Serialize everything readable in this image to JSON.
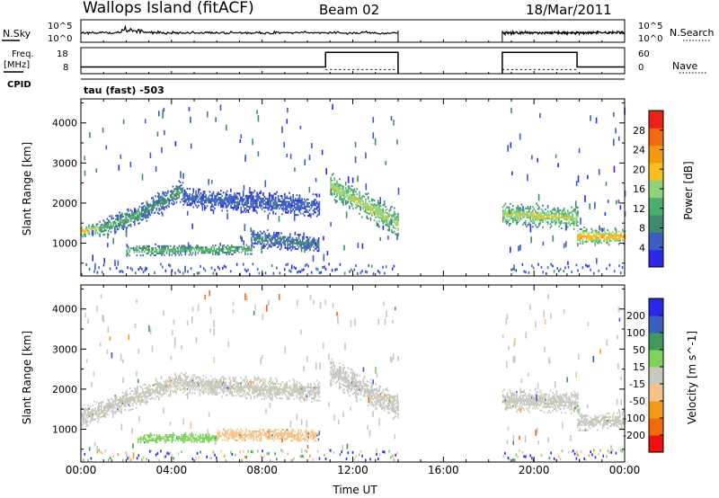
{
  "header": {
    "station": "Wallops Island (fitACF)",
    "beam": "Beam 02",
    "date": "18/Mar/2011"
  },
  "strip_labels": {
    "nsky": "N.Sky",
    "nsky_ticks": [
      "10^5",
      "10^0"
    ],
    "nsearch": "N.Search",
    "nsearch_ticks": [
      "10^5",
      "10^0"
    ],
    "freq": "Freq.",
    "freq_unit": "[MHz]",
    "freq_ticks": [
      "18",
      "8"
    ],
    "nave": "Nave",
    "nave_ticks": [
      "60",
      "0"
    ],
    "cpid": "CPID",
    "cpid_value": "tau (fast) -503"
  },
  "colors": {
    "power": [
      "#2a2ae6",
      "#3a5fc0",
      "#3e8c6a",
      "#4fae6c",
      "#8fd37a",
      "#f7c020",
      "#f59a10",
      "#f26a10",
      "#e8241a"
    ],
    "velocity": [
      "#ee1111",
      "#f26a10",
      "#f79a1a",
      "#f5c28a",
      "#c8c8c0",
      "#7ed35c",
      "#3f9a5e",
      "#3a5fc0",
      "#2a2ae6"
    ],
    "velocity_ground": "#c8c8c0"
  },
  "chart_data": [
    {
      "type": "heatmap",
      "name": "power",
      "xlabel": "",
      "ylabel": "Slant Range [km]",
      "xlim": [
        0,
        24
      ],
      "ylim": [
        180,
        4600
      ],
      "x_ticks": [
        "00:00",
        "04:00",
        "08:00",
        "12:00",
        "16:00",
        "20:00",
        "00:00"
      ],
      "y_ticks": [
        1000,
        2000,
        3000,
        4000
      ],
      "colorbar_label": "Power [dB]",
      "colorbar_ticks": [
        "4",
        "8",
        "12",
        "16",
        "20",
        "24",
        "28"
      ],
      "colorbar_range": [
        0,
        32
      ],
      "data_gaps_hours": [
        [
          14.0,
          18.6
        ]
      ],
      "echo_bands": [
        {
          "t0": 0.0,
          "t1": 0.8,
          "range_center": [
            1270,
            1320
          ],
          "width": 180,
          "power": 20
        },
        {
          "t0": 0.8,
          "t1": 2.6,
          "range_center": [
            1320,
            1700
          ],
          "width": 260,
          "power": 12
        },
        {
          "t0": 2.6,
          "t1": 4.5,
          "range_center": [
            1700,
            2300
          ],
          "width": 300,
          "power": 10
        },
        {
          "t0": 4.5,
          "t1": 10.5,
          "range_center": [
            2100,
            1900
          ],
          "width": 300,
          "power": 6
        },
        {
          "t0": 2.0,
          "t1": 7.5,
          "range_center": [
            780,
            820
          ],
          "width": 160,
          "power": 14
        },
        {
          "t0": 7.5,
          "t1": 10.5,
          "range_center": [
            1100,
            950
          ],
          "width": 260,
          "power": 8
        },
        {
          "t0": 11.0,
          "t1": 14.0,
          "range_center": [
            2400,
            1450
          ],
          "width": 380,
          "power": 18
        },
        {
          "t0": 18.6,
          "t1": 21.9,
          "range_center": [
            1700,
            1600
          ],
          "width": 320,
          "power": 18
        },
        {
          "t0": 21.9,
          "t1": 24.0,
          "range_center": [
            1120,
            1160
          ],
          "width": 250,
          "power": 22
        }
      ]
    },
    {
      "type": "heatmap",
      "name": "velocity",
      "xlabel": "Time UT",
      "ylabel": "Slant Range [km]",
      "xlim": [
        0,
        24
      ],
      "ylim": [
        180,
        4600
      ],
      "x_ticks": [
        "00:00",
        "04:00",
        "08:00",
        "12:00",
        "16:00",
        "20:00",
        "00:00"
      ],
      "y_ticks": [
        1000,
        2000,
        3000,
        4000
      ],
      "colorbar_label": "Velocity [m s^-1]",
      "colorbar_ticks": [
        "-200",
        "-100",
        "-50",
        "-15",
        "15",
        "50",
        "100",
        "200"
      ],
      "data_gaps_hours": [
        [
          14.0,
          18.6
        ]
      ],
      "echo_bands": [
        {
          "t0": 0.0,
          "t1": 4.5,
          "range_center": [
            1270,
            2200
          ],
          "width": 300,
          "velocity": 0
        },
        {
          "t0": 4.5,
          "t1": 10.5,
          "range_center": [
            2100,
            1900
          ],
          "width": 300,
          "velocity": 0
        },
        {
          "t0": 2.5,
          "t1": 6.0,
          "range_center": [
            740,
            760
          ],
          "width": 140,
          "velocity": 30
        },
        {
          "t0": 6.0,
          "t1": 10.5,
          "range_center": [
            840,
            820
          ],
          "width": 180,
          "velocity": -40
        },
        {
          "t0": 11.0,
          "t1": 14.0,
          "range_center": [
            2400,
            1500
          ],
          "width": 380,
          "velocity": 0
        },
        {
          "t0": 18.6,
          "t1": 21.9,
          "range_center": [
            1700,
            1650
          ],
          "width": 320,
          "velocity": 0
        },
        {
          "t0": 21.9,
          "t1": 24.0,
          "range_center": [
            1150,
            1180
          ],
          "width": 250,
          "velocity": 0
        }
      ]
    }
  ]
}
